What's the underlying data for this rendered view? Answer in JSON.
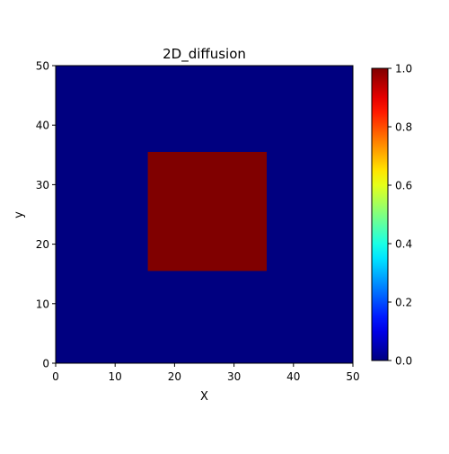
{
  "chart_data": {
    "type": "heatmap",
    "title": "2D_diffusion",
    "xlabel": "X",
    "ylabel": "y",
    "xlim": [
      0,
      50
    ],
    "ylim": [
      0,
      50
    ],
    "xticks": [
      0,
      10,
      20,
      30,
      40,
      50
    ],
    "yticks": [
      0,
      10,
      20,
      30,
      40,
      50
    ],
    "grid": false,
    "colormap": "jet",
    "background_value": 0.0,
    "regions": [
      {
        "x": [
          15.5,
          35.5
        ],
        "y": [
          15.5,
          35.5
        ],
        "value": 1.0
      }
    ],
    "colorbar": {
      "min": 0.0,
      "max": 1.0,
      "ticks": [
        "0.0",
        "0.2",
        "0.4",
        "0.6",
        "0.8",
        "1.0"
      ]
    }
  }
}
